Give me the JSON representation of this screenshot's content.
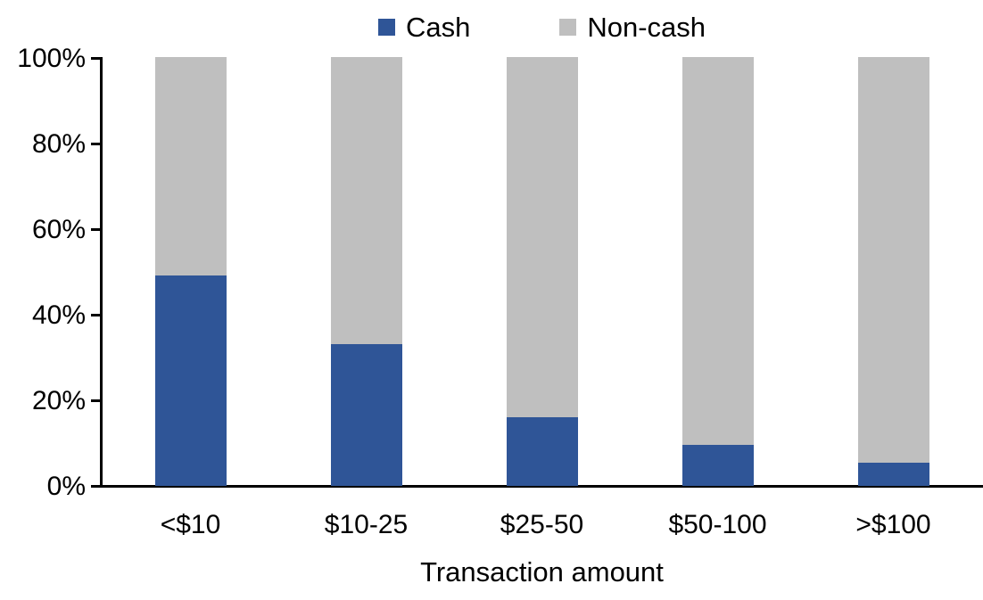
{
  "chart_data": {
    "type": "bar",
    "variant": "stacked-100-percent",
    "title": "",
    "xlabel": "Transaction amount",
    "ylabel": "",
    "categories": [
      "<$10",
      "$10-25",
      "$25-50",
      "$50-100",
      ">$100"
    ],
    "series": [
      {
        "name": "Cash",
        "color": "#2F5597",
        "values": [
          49,
          33,
          16,
          9.5,
          5.5
        ]
      },
      {
        "name": "Non-cash",
        "color": "#BFBFBF",
        "values": [
          51,
          67,
          84,
          90.5,
          94.5
        ]
      }
    ],
    "ylim": [
      0,
      100
    ],
    "y_ticks": [
      "0%",
      "20%",
      "40%",
      "60%",
      "80%",
      "100%"
    ],
    "grid": false,
    "legend_position": "top",
    "axis_color": "#000000",
    "background_color": "#FFFFFF"
  }
}
